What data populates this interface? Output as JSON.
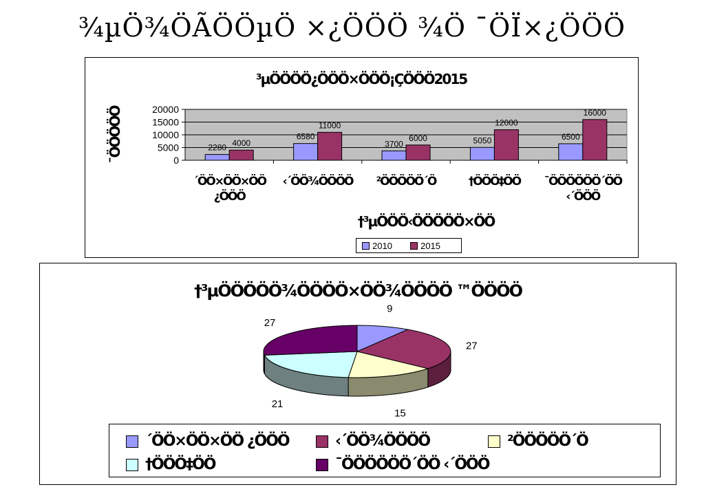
{
  "page": {
    "title": "¾µÖ¾ÖÃÖÖµÖ ×¿ÖÖÖ ¾Ö ¯ÖÏ×¿ÖÖÖ"
  },
  "chart_data": [
    {
      "type": "bar",
      "title": "³µÖÖÖÖ¿ÖÖÖ×ÖÖÖ¡ÇÖÖÖ2015",
      "xlabel": "†³µÖÖÖ‹ÖÖÖÖÖ×ÖÖ",
      "ylabel": "¯ÖÖÖÖÖ",
      "ylim": [
        0,
        20000
      ],
      "yticks": [
        0,
        5000,
        10000,
        15000,
        20000
      ],
      "grid": true,
      "legend_position": "bottom",
      "categories": [
        "´ÖÖ×ÖÖ×ÖÖ ¿ÖÖÖ",
        "‹´ÖÖ¾ÖÖÖÖ",
        "²ÖÖÖÖÖ´Ö",
        "†ÖÖÖ‡ÖÖ",
        "¯ÖÖÖÖÖÖ´ÖÖ ‹´ÖÖÖ"
      ],
      "category_lines": [
        [
          "´ÖÖ×ÖÖ×ÖÖ",
          "¿ÖÖÖ"
        ],
        [
          "‹´ÖÖ¾ÖÖÖÖ"
        ],
        [
          "²ÖÖÖÖÖ´Ö"
        ],
        [
          "†ÖÖÖ‡ÖÖ"
        ],
        [
          "¯ÖÖÖÖÖÖ´ÖÖ",
          "‹´ÖÖÖ"
        ]
      ],
      "series": [
        {
          "name": "2010",
          "color": "#9999ff",
          "values": [
            2280,
            6580,
            3700,
            5050,
            6500
          ]
        },
        {
          "name": "2015",
          "color": "#993366",
          "values": [
            4000,
            11000,
            6000,
            12000,
            16000
          ]
        }
      ],
      "plot_bg": "#c0c0c0"
    },
    {
      "type": "pie",
      "title": "†³µÖÖÖÖÖ¾ÖÖÖÖ×ÖÖ¾ÖÖÖÖ ™ÖÖÖÖ",
      "legend_position": "bottom",
      "slices": [
        {
          "name": "´ÖÖ×ÖÖ×ÖÖ ¿ÖÖÖ",
          "value": 9,
          "color": "#9999ff",
          "dark": "#5c5c99"
        },
        {
          "name": "‹´ÖÖ¾ÖÖÖÖ",
          "value": 27,
          "color": "#993366",
          "dark": "#5c1f3d"
        },
        {
          "name": "²ÖÖÖÖÖ´Ö",
          "value": 15,
          "color": "#ffffcc",
          "dark": "#8a8a6e"
        },
        {
          "name": "†ÖÖÖ‡ÖÖ",
          "value": 21,
          "color": "#ccffff",
          "dark": "#6e8080"
        },
        {
          "name": "¯ÖÖÖÖÖÖ´ÖÖ ‹´ÖÖÖ",
          "value": 27,
          "color": "#660066",
          "dark": "#3d003d"
        }
      ]
    }
  ]
}
